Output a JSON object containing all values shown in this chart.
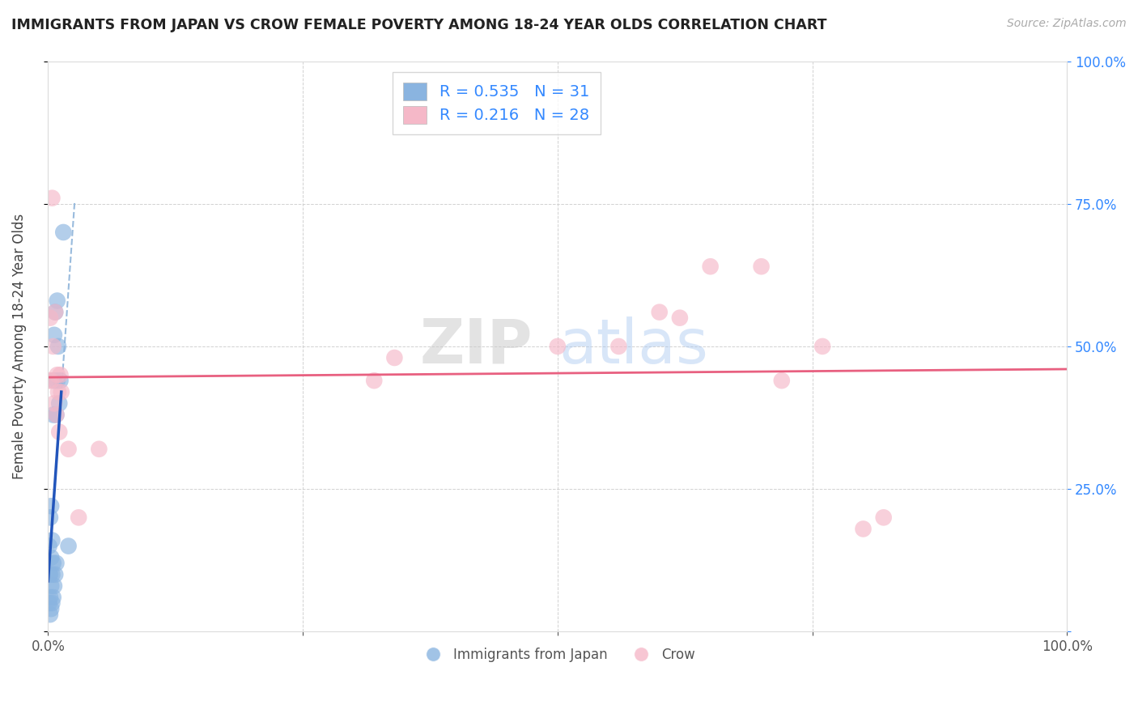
{
  "title": "IMMIGRANTS FROM JAPAN VS CROW FEMALE POVERTY AMONG 18-24 YEAR OLDS CORRELATION CHART",
  "source": "Source: ZipAtlas.com",
  "ylabel": "Female Poverty Among 18-24 Year Olds",
  "xlim": [
    0,
    1.0
  ],
  "ylim": [
    0,
    1.0
  ],
  "xticks": [
    0.0,
    0.25,
    0.5,
    0.75,
    1.0
  ],
  "xticklabels": [
    "0.0%",
    "",
    "",
    "",
    "100.0%"
  ],
  "yticks": [
    0.0,
    0.25,
    0.5,
    0.75,
    1.0
  ],
  "right_yticklabels": [
    "",
    "25.0%",
    "50.0%",
    "75.0%",
    "100.0%"
  ],
  "background_color": "#ffffff",
  "grid_color": "#cccccc",
  "legend_r1": "R = 0.535",
  "legend_n1": "N = 31",
  "legend_r2": "R = 0.216",
  "legend_n2": "N = 28",
  "blue_scatter_color": "#8ab4e0",
  "pink_scatter_color": "#f5b8c8",
  "blue_line_color": "#2255bb",
  "pink_line_color": "#e86080",
  "blue_dash_color": "#99bbdd",
  "series1_x": [
    0.001,
    0.001,
    0.001,
    0.002,
    0.002,
    0.002,
    0.002,
    0.003,
    0.003,
    0.003,
    0.003,
    0.004,
    0.004,
    0.004,
    0.005,
    0.005,
    0.005,
    0.006,
    0.006,
    0.006,
    0.007,
    0.007,
    0.008,
    0.008,
    0.009,
    0.009,
    0.01,
    0.011,
    0.012,
    0.015,
    0.02
  ],
  "series1_y": [
    0.05,
    0.1,
    0.15,
    0.03,
    0.06,
    0.1,
    0.2,
    0.04,
    0.08,
    0.13,
    0.22,
    0.05,
    0.1,
    0.16,
    0.06,
    0.12,
    0.38,
    0.08,
    0.44,
    0.52,
    0.1,
    0.56,
    0.12,
    0.38,
    0.44,
    0.58,
    0.5,
    0.4,
    0.44,
    0.7,
    0.15
  ],
  "series2_x": [
    0.001,
    0.002,
    0.003,
    0.004,
    0.005,
    0.006,
    0.007,
    0.008,
    0.009,
    0.01,
    0.011,
    0.012,
    0.013,
    0.02,
    0.03,
    0.05,
    0.32,
    0.34,
    0.5,
    0.56,
    0.6,
    0.62,
    0.65,
    0.7,
    0.72,
    0.76,
    0.8,
    0.82
  ],
  "series2_y": [
    0.44,
    0.55,
    0.44,
    0.76,
    0.5,
    0.4,
    0.56,
    0.38,
    0.45,
    0.42,
    0.35,
    0.45,
    0.42,
    0.32,
    0.2,
    0.32,
    0.44,
    0.48,
    0.5,
    0.5,
    0.56,
    0.55,
    0.64,
    0.64,
    0.44,
    0.5,
    0.18,
    0.2
  ],
  "blue_solid_xrange": [
    0.0,
    0.012
  ],
  "blue_dash_xrange": [
    0.008,
    0.025
  ]
}
